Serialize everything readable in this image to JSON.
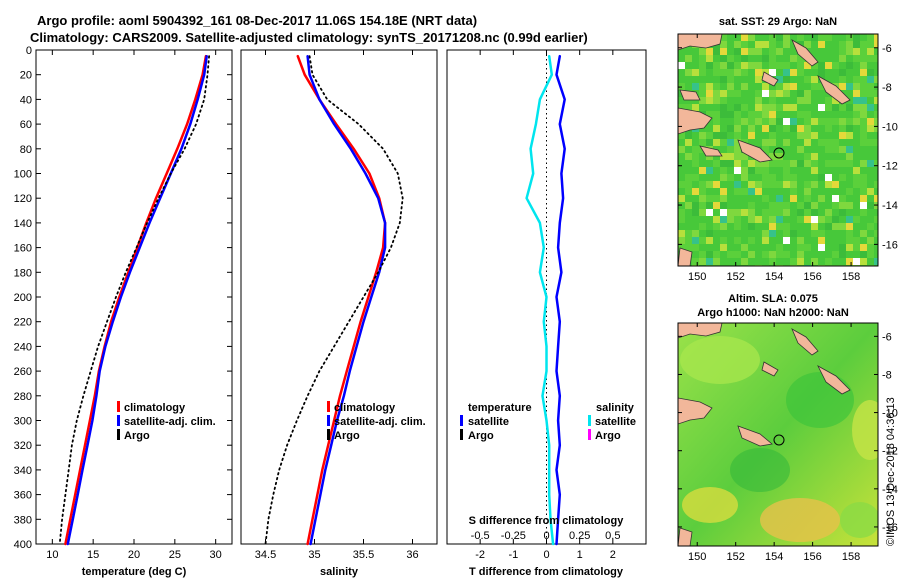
{
  "header": {
    "line1": "Argo profile: aoml 5904392_161 08-Dec-2017 11.06S 154.18E (NRT data)",
    "line2": "Climatology: CARS2009. Satellite-adjusted climatology: synTS_20171208.nc (0.99d earlier)"
  },
  "colors": {
    "climatology": "#ff0000",
    "satellite": "#0000ff",
    "argo": "#000000",
    "sal_sat": "#00e5ee",
    "sal_argo": "#ff00ff"
  },
  "depth_axis": {
    "ticks": [
      "0",
      "20",
      "40",
      "60",
      "80",
      "100",
      "120",
      "140",
      "160",
      "180",
      "200",
      "220",
      "240",
      "260",
      "280",
      "300",
      "320",
      "340",
      "360",
      "380",
      "400"
    ]
  },
  "chart_data": [
    {
      "type": "line",
      "id": "temperature",
      "xlabel": "temperature (deg C)",
      "ylabel": "depth",
      "xlim": [
        8,
        32
      ],
      "ylim": [
        0,
        400
      ],
      "xticks": [
        "10",
        "15",
        "20",
        "25",
        "30"
      ],
      "legend": [
        "climatology",
        "satellite-adj. clim.",
        "Argo"
      ],
      "series": [
        {
          "name": "climatology",
          "depth": [
            5,
            20,
            40,
            60,
            80,
            100,
            120,
            140,
            160,
            180,
            200,
            220,
            240,
            260,
            280,
            300,
            320,
            340,
            360,
            380,
            400
          ],
          "values": [
            28.8,
            28.4,
            27.5,
            26.5,
            25.3,
            24.0,
            22.7,
            21.5,
            20.4,
            19.3,
            18.2,
            17.2,
            16.4,
            15.7,
            15.2,
            14.6,
            14.0,
            13.4,
            12.8,
            12.2,
            11.6
          ]
        },
        {
          "name": "satellite-adj. clim.",
          "depth": [
            5,
            20,
            40,
            60,
            80,
            100,
            120,
            140,
            160,
            180,
            200,
            220,
            240,
            260,
            280,
            300,
            320,
            340,
            360,
            380,
            400
          ],
          "values": [
            28.9,
            28.6,
            27.8,
            26.9,
            25.8,
            24.5,
            23.2,
            21.9,
            20.7,
            19.5,
            18.4,
            17.4,
            16.5,
            15.8,
            15.4,
            14.9,
            14.3,
            13.7,
            13.1,
            12.5,
            11.9
          ]
        },
        {
          "name": "Argo",
          "depth": [
            5,
            20,
            40,
            60,
            80,
            100,
            120,
            140,
            160,
            180,
            200,
            220,
            240,
            260,
            280,
            300,
            320,
            340,
            360,
            380,
            400
          ],
          "values": [
            29.2,
            29.0,
            28.6,
            27.6,
            26.2,
            24.5,
            23.0,
            21.6,
            20.3,
            19.0,
            17.8,
            16.7,
            15.6,
            14.7,
            13.8,
            13.0,
            12.4,
            12.0,
            11.6,
            11.2,
            10.9
          ]
        }
      ]
    },
    {
      "type": "line",
      "id": "salinity",
      "xlabel": "salinity",
      "ylabel": "depth",
      "xlim": [
        34.25,
        36.25
      ],
      "ylim": [
        0,
        400
      ],
      "xticks": [
        "34.5",
        "35",
        "35.5",
        "36"
      ],
      "legend": [
        "climatology",
        "satellite-adj. clim.",
        "Argo"
      ],
      "series": [
        {
          "name": "climatology",
          "depth": [
            5,
            20,
            40,
            60,
            80,
            100,
            120,
            140,
            160,
            180,
            200,
            220,
            240,
            260,
            280,
            300,
            320,
            340,
            360,
            380,
            400
          ],
          "values": [
            34.83,
            34.9,
            35.05,
            35.22,
            35.4,
            35.56,
            35.66,
            35.72,
            35.7,
            35.63,
            35.55,
            35.47,
            35.4,
            35.33,
            35.26,
            35.2,
            35.14,
            35.08,
            35.03,
            34.98,
            34.93
          ]
        },
        {
          "name": "satellite-adj. clim.",
          "depth": [
            5,
            20,
            40,
            60,
            80,
            100,
            120,
            140,
            160,
            180,
            200,
            220,
            240,
            260,
            280,
            300,
            320,
            340,
            360,
            380,
            400
          ],
          "values": [
            34.93,
            34.95,
            35.05,
            35.2,
            35.37,
            35.52,
            35.65,
            35.72,
            35.72,
            35.66,
            35.58,
            35.5,
            35.43,
            35.36,
            35.3,
            35.23,
            35.17,
            35.11,
            35.06,
            35.01,
            34.96
          ]
        },
        {
          "name": "Argo",
          "depth": [
            5,
            20,
            40,
            60,
            80,
            100,
            120,
            140,
            160,
            180,
            200,
            220,
            240,
            260,
            280,
            300,
            320,
            340,
            360,
            380,
            400
          ],
          "values": [
            34.95,
            34.98,
            35.13,
            35.45,
            35.7,
            35.85,
            35.9,
            35.87,
            35.78,
            35.65,
            35.5,
            35.35,
            35.2,
            35.05,
            34.93,
            34.82,
            34.72,
            34.64,
            34.58,
            34.53,
            34.5
          ]
        }
      ]
    },
    {
      "type": "line",
      "id": "difference",
      "xlabel": "T difference from climatology",
      "xlabel_top": "S difference from climatology",
      "ylabel": "depth",
      "xlim": [
        -3,
        3
      ],
      "ylim": [
        0,
        400
      ],
      "xticks": [
        "-2",
        "-1",
        "0",
        "1",
        "2"
      ],
      "xticks_s": [
        "-0.5",
        "-0.25",
        "0",
        "0.25",
        "0.5"
      ],
      "legend_temperature_title": "temperature",
      "legend_salinity_title": "salinity",
      "legend_temperature": [
        "satellite",
        "Argo"
      ],
      "legend_salinity": [
        "satellite",
        "Argo"
      ],
      "series": [
        {
          "name": "temperature satellite",
          "depth": [
            5,
            20,
            40,
            60,
            80,
            100,
            120,
            140,
            160,
            180,
            200,
            220,
            240,
            260,
            280,
            300,
            320,
            340,
            360,
            380,
            400
          ],
          "values": [
            0.4,
            0.3,
            0.55,
            0.4,
            0.55,
            0.45,
            0.5,
            0.4,
            0.35,
            0.45,
            0.3,
            0.4,
            0.35,
            0.3,
            0.4,
            0.35,
            0.4,
            0.3,
            0.4,
            0.35,
            0.3
          ]
        },
        {
          "name": "salinity satellite",
          "depth": [
            5,
            20,
            40,
            60,
            80,
            100,
            120,
            140,
            160,
            180,
            200,
            220,
            240,
            260,
            280,
            300,
            320,
            340,
            360,
            380,
            400
          ],
          "values": [
            0.02,
            0.04,
            -0.05,
            -0.08,
            -0.12,
            -0.1,
            -0.15,
            -0.05,
            -0.02,
            -0.05,
            0.0,
            -0.02,
            0.0,
            0.0,
            -0.03,
            0.0,
            0.02,
            0.02,
            0.02,
            0.03,
            0.05
          ]
        }
      ]
    }
  ],
  "maps": {
    "sst_title": "sat. SST: 29 Argo: NaN",
    "sla_title1": "Altim. SLA: 0.075",
    "sla_title2": "Argo h1000: NaN h2000: NaN",
    "lat_ticks": [
      "-6",
      "-8",
      "-10",
      "-12",
      "-14",
      "-16"
    ],
    "lon_ticks": [
      "150",
      "152",
      "154",
      "156",
      "158"
    ],
    "argo_position": {
      "lon": 154.18,
      "lat": -11.06
    }
  },
  "watermark": "©IMOS 13-Dec-2018 04:36:13"
}
